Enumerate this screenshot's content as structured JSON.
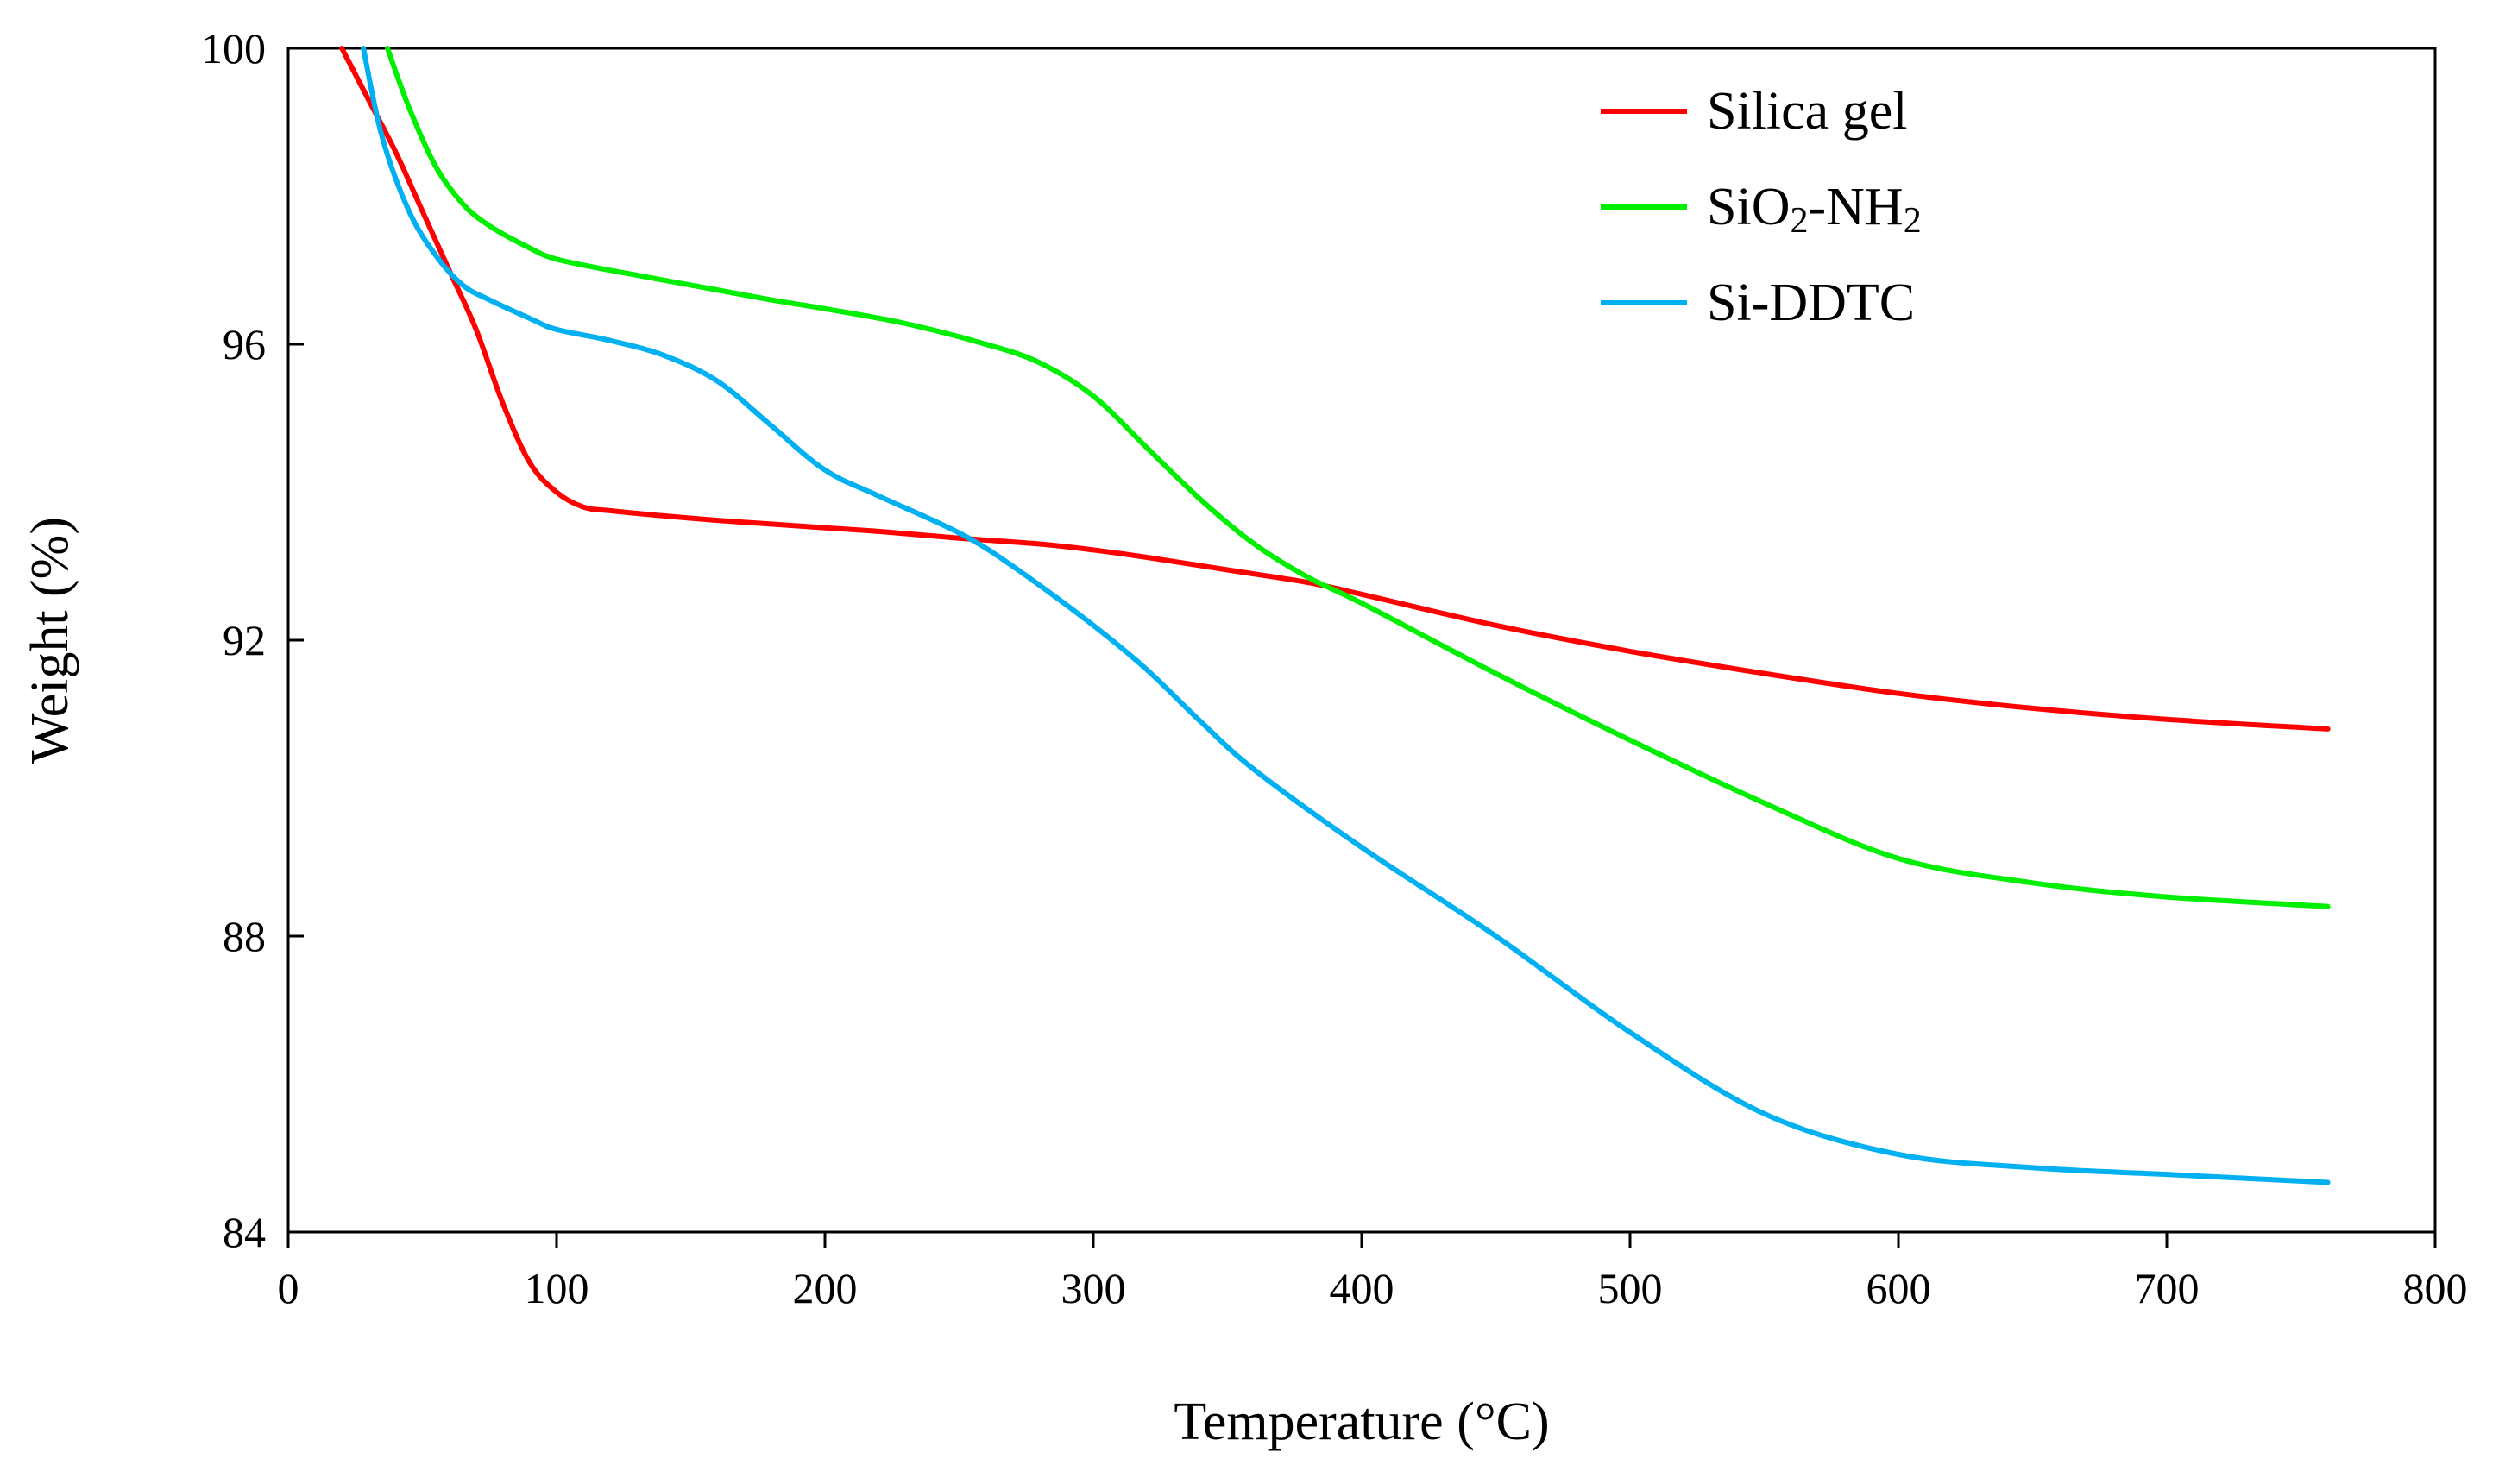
{
  "chart_data": {
    "type": "line",
    "title": "",
    "xlabel": "Temperature (°C)",
    "ylabel": "Weight (%)",
    "xlim": [
      0,
      800
    ],
    "ylim": [
      84,
      100
    ],
    "xticks": [
      0,
      100,
      200,
      300,
      400,
      500,
      600,
      700,
      800
    ],
    "yticks": [
      84,
      88,
      92,
      96,
      100
    ],
    "grid": false,
    "legend_position": "top-right",
    "series": [
      {
        "name": "Silica gel",
        "color": "#ff0000",
        "label_parts": [
          {
            "text": "Silica gel",
            "sub": false
          }
        ],
        "x": [
          20,
          30,
          40,
          50,
          60,
          70,
          80,
          90,
          100,
          110,
          120,
          140,
          160,
          180,
          200,
          220,
          250,
          280,
          300,
          320,
          350,
          380,
          400,
          450,
          500,
          550,
          600,
          650,
          700,
          760
        ],
        "y": [
          100,
          99.3,
          98.6,
          97.8,
          97.0,
          96.2,
          95.2,
          94.4,
          94.0,
          93.8,
          93.75,
          93.68,
          93.62,
          93.57,
          93.52,
          93.47,
          93.38,
          93.3,
          93.22,
          93.12,
          92.95,
          92.78,
          92.62,
          92.2,
          91.85,
          91.55,
          91.28,
          91.08,
          90.93,
          90.8
        ]
      },
      {
        "name": "SiO2-NH2",
        "color": "#00ee00",
        "label_parts": [
          {
            "text": "SiO",
            "sub": false
          },
          {
            "text": "2",
            "sub": true
          },
          {
            "text": "-NH",
            "sub": false
          },
          {
            "text": "2",
            "sub": true
          }
        ],
        "x": [
          37,
          45,
          55,
          65,
          75,
          90,
          100,
          120,
          150,
          180,
          200,
          230,
          260,
          280,
          300,
          320,
          340,
          360,
          380,
          400,
          450,
          500,
          550,
          600,
          650,
          700,
          760
        ],
        "y": [
          100,
          99.2,
          98.4,
          97.9,
          97.6,
          97.3,
          97.15,
          97.0,
          96.8,
          96.6,
          96.48,
          96.28,
          96.0,
          95.75,
          95.3,
          94.6,
          93.9,
          93.3,
          92.85,
          92.5,
          91.55,
          90.65,
          89.8,
          89.05,
          88.72,
          88.53,
          88.4
        ]
      },
      {
        "name": "Si-DDTC",
        "color": "#00b0f0",
        "label_parts": [
          {
            "text": "Si-DDTC",
            "sub": false
          }
        ],
        "x": [
          28,
          35,
          45,
          55,
          65,
          75,
          90,
          100,
          120,
          140,
          160,
          180,
          200,
          220,
          250,
          270,
          300,
          320,
          340,
          360,
          400,
          450,
          500,
          550,
          600,
          650,
          700,
          760
        ],
        "y": [
          100,
          98.8,
          97.8,
          97.2,
          96.8,
          96.6,
          96.35,
          96.2,
          96.05,
          95.85,
          95.5,
          94.9,
          94.3,
          93.95,
          93.45,
          93.0,
          92.2,
          91.6,
          90.9,
          90.25,
          89.2,
          88.0,
          86.7,
          85.6,
          85.05,
          84.87,
          84.78,
          84.67
        ]
      }
    ]
  }
}
